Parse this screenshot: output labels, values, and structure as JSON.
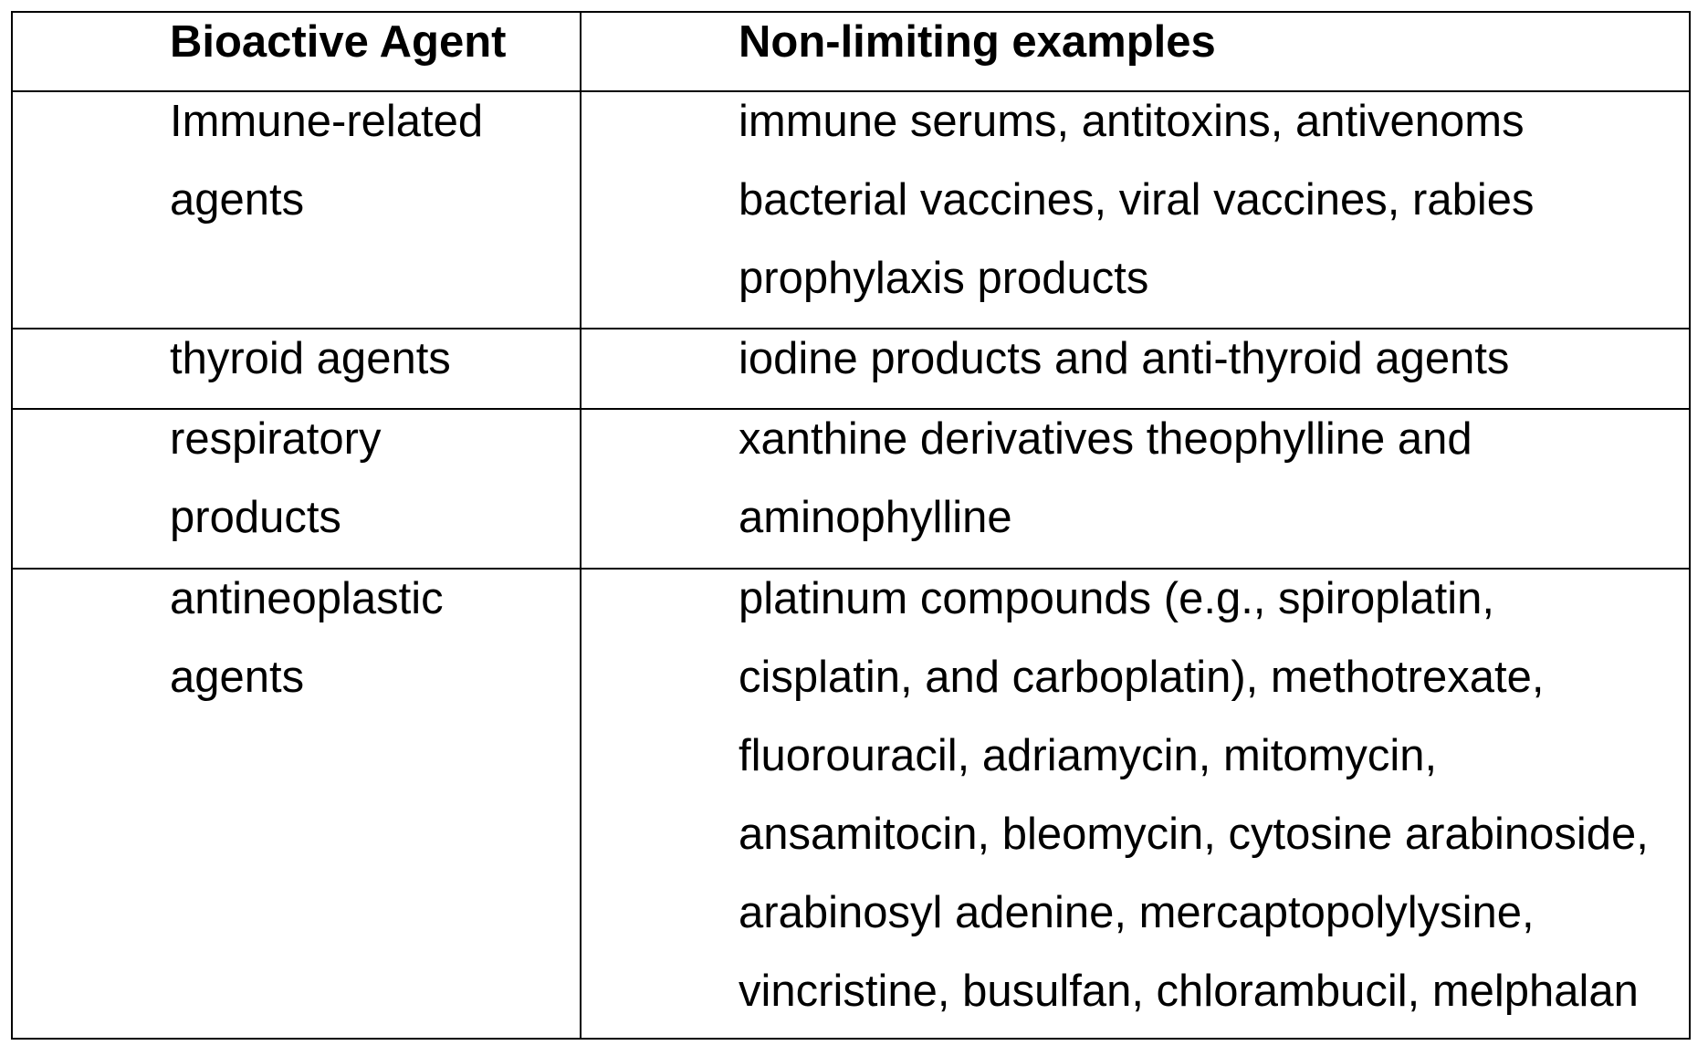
{
  "table": {
    "headers": [
      "Bioactive Agent",
      "Non-limiting examples"
    ],
    "rows": [
      {
        "agent": "Immune-related\nagents",
        "examples": "immune serums, antitoxins, antivenoms\nbacterial vaccines, viral vaccines, rabies\nprophylaxis products"
      },
      {
        "agent": "thyroid agents",
        "examples": "iodine products and anti-thyroid agents"
      },
      {
        "agent": "respiratory\nproducts",
        "examples": "xanthine derivatives theophylline and\naminophylline"
      },
      {
        "agent": "antineoplastic\nagents",
        "examples": "platinum compounds (e.g., spiroplatin,\ncisplatin, and carboplatin), methotrexate,\nfluorouracil, adriamycin, mitomycin,\nansamitocin, bleomycin, cytosine arabinoside,\narabinosyl adenine, mercaptopolylysine,\nvincristine, busulfan, chlorambucil, melphalan"
      }
    ]
  }
}
